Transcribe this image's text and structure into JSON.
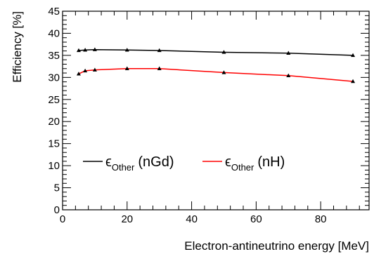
{
  "chart_data": {
    "type": "line",
    "xlabel": "Electron-antineutrino energy [MeV]",
    "ylabel": "Efficiency [%]",
    "xlim": [
      0,
      95
    ],
    "ylim": [
      0,
      45
    ],
    "x_ticks": [
      0,
      20,
      40,
      60,
      80
    ],
    "y_ticks": [
      0,
      5,
      10,
      15,
      20,
      25,
      30,
      35,
      40,
      45
    ],
    "grid": false,
    "legend_position": "lower-left",
    "series": [
      {
        "name": "ϵOther (nGd)",
        "legend_prefix": "ϵ",
        "legend_subscript": "Other",
        "legend_suffix": "(nGd)",
        "color": "#000000",
        "x": [
          5,
          7,
          10,
          20,
          30,
          50,
          70,
          90
        ],
        "y": [
          36.1,
          36.2,
          36.3,
          36.2,
          36.1,
          35.7,
          35.5,
          35.0
        ]
      },
      {
        "name": "ϵOther (nH)",
        "legend_prefix": "ϵ",
        "legend_subscript": "Other",
        "legend_suffix": "(nH)",
        "color": "#ff0000",
        "x": [
          5,
          7,
          10,
          20,
          30,
          50,
          70,
          90
        ],
        "y": [
          30.8,
          31.5,
          31.7,
          32.0,
          32.0,
          31.1,
          30.4,
          29.1
        ]
      }
    ]
  }
}
